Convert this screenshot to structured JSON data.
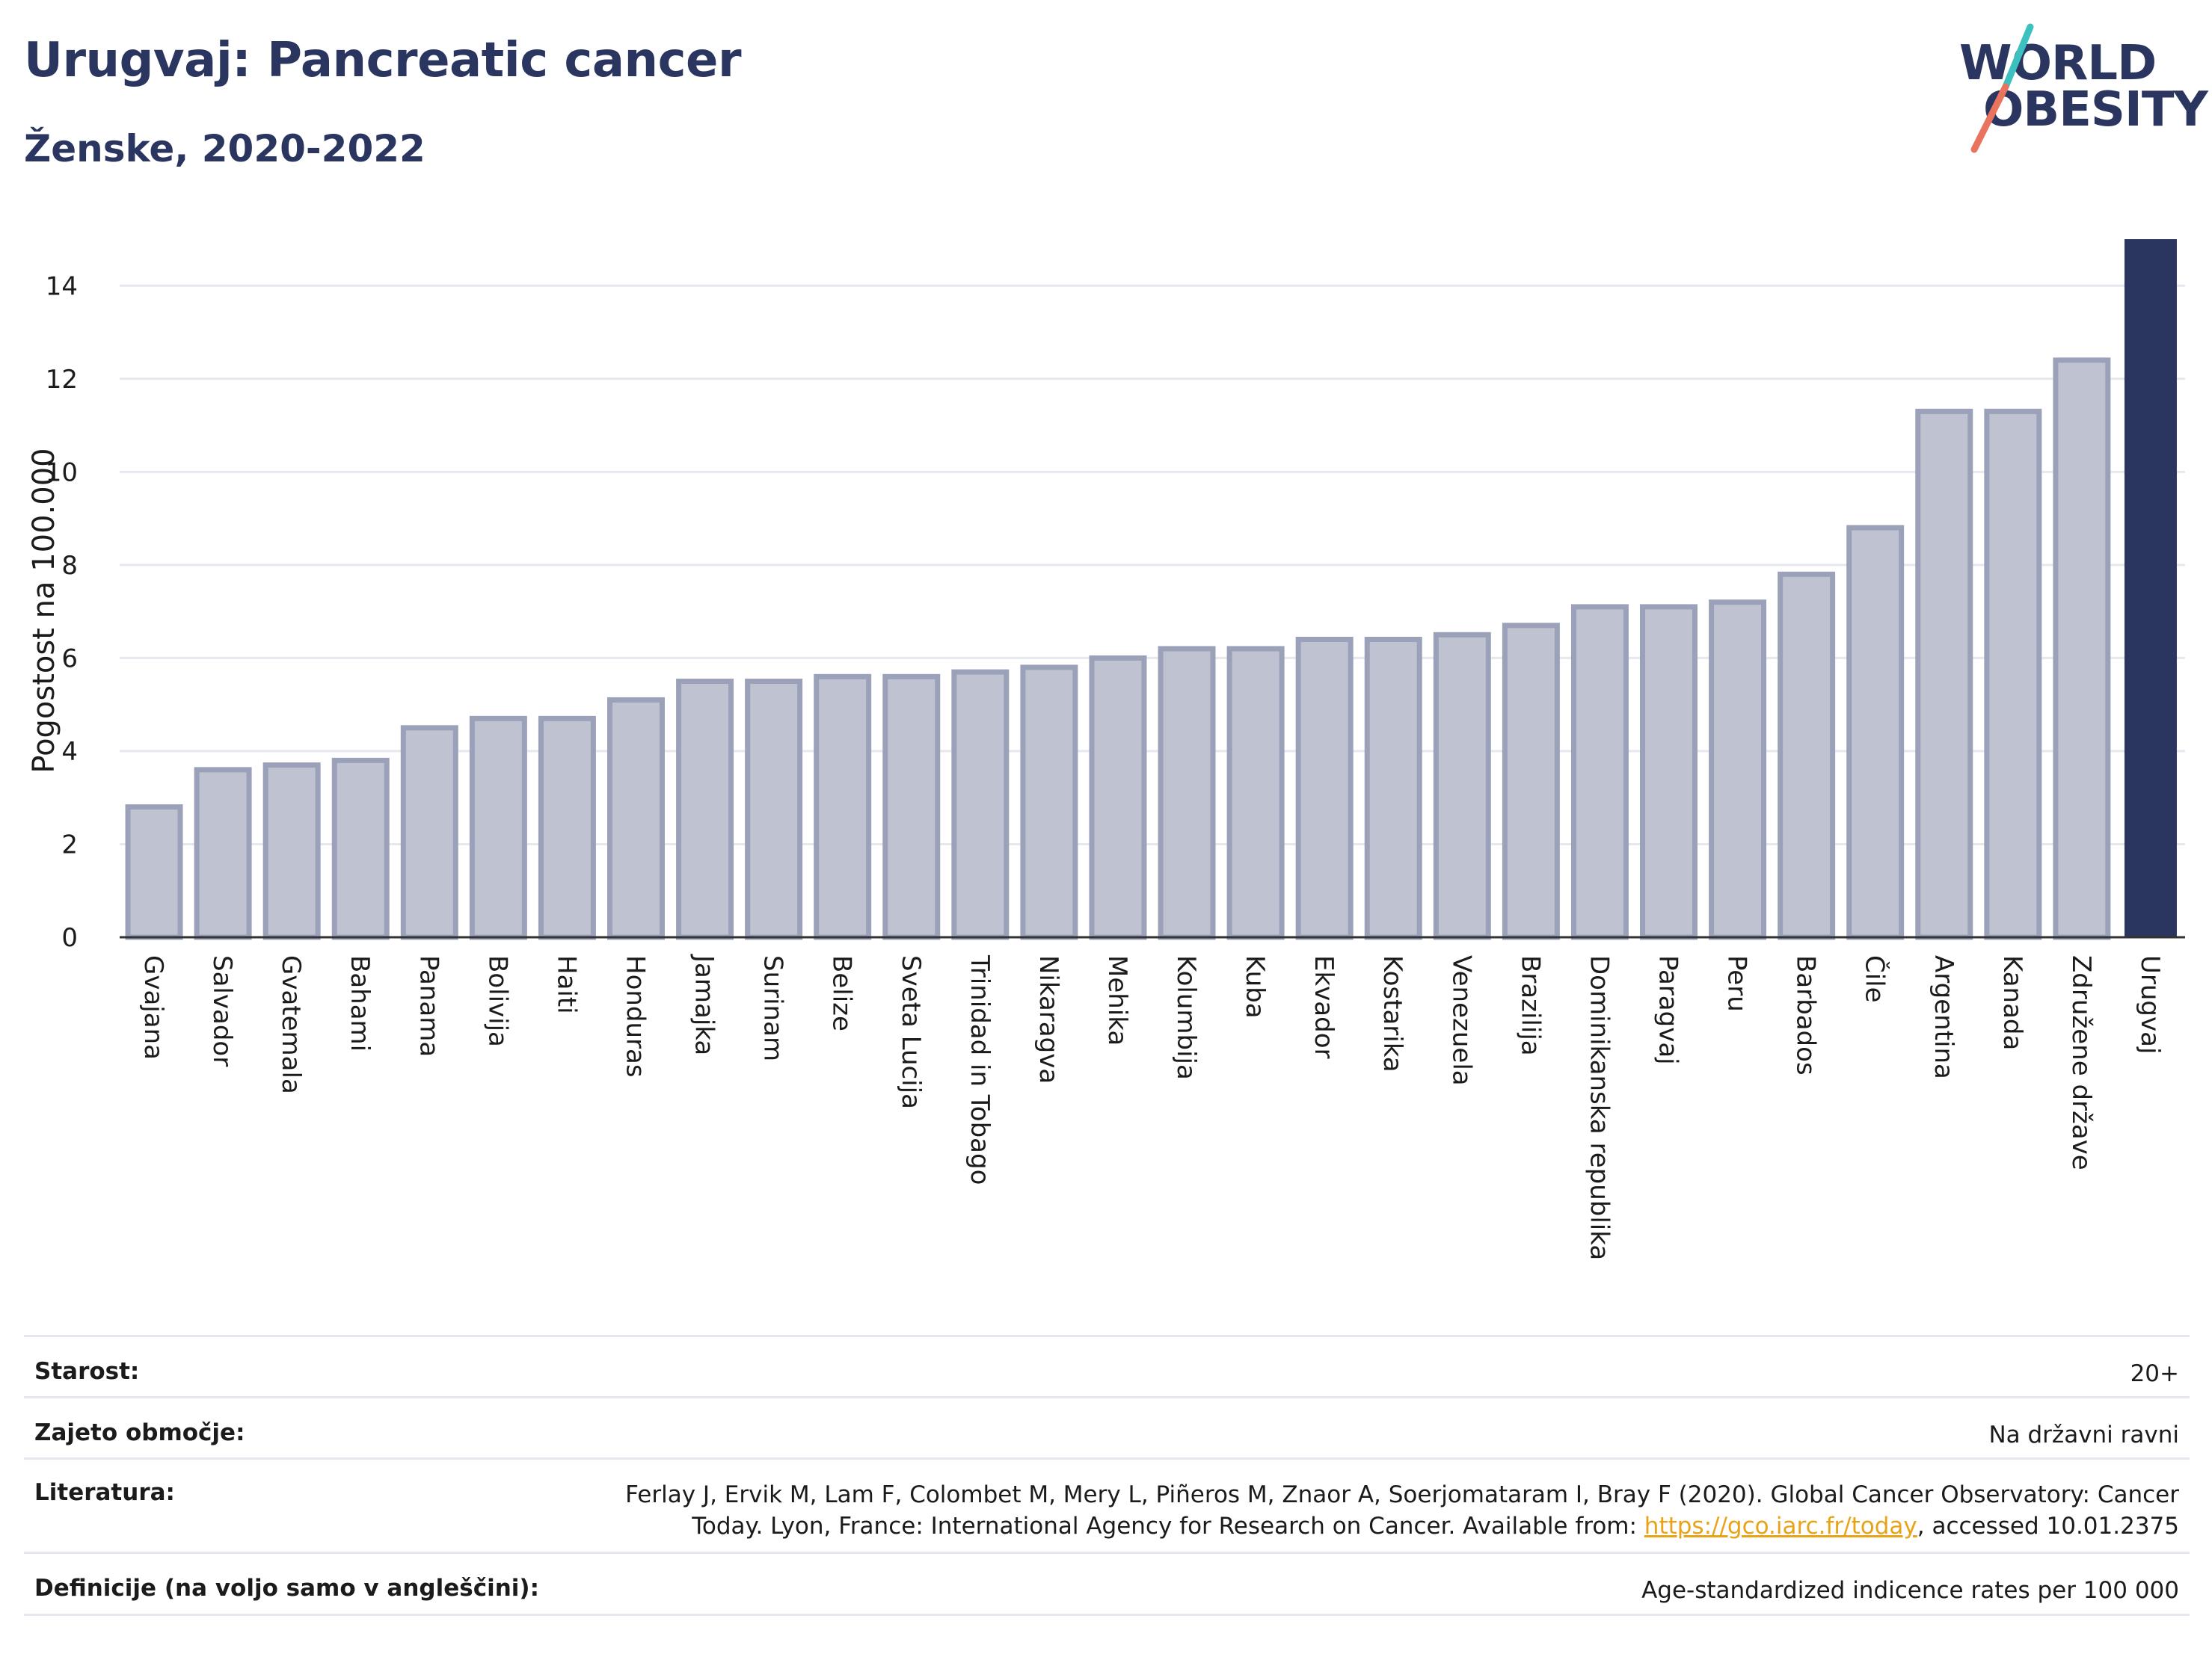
{
  "title": "Urugvaj: Pancreatic cancer",
  "subtitle": "Ženske, 2020-2022",
  "logo": {
    "line1": "WORLD",
    "line2": "OBESITY"
  },
  "colors": {
    "bar_fill": "#bfc2d0",
    "bar_stroke": "#9aa1b9",
    "highlight": "#2a3660",
    "grid": "#e6e8f0",
    "axis": "#333333",
    "logo_teal": "#3cc0c0",
    "logo_coral": "#e8735f",
    "link": "#e8a317"
  },
  "chart_data": {
    "type": "bar",
    "ylabel": "Pogostost na 100.000",
    "ylim": [
      0,
      15
    ],
    "yticks": [
      0,
      2,
      4,
      6,
      8,
      10,
      12,
      14
    ],
    "grid": true,
    "highlight_category": "Urugvaj",
    "categories": [
      "Gvajana",
      "Salvador",
      "Gvatemala",
      "Bahami",
      "Panama",
      "Bolivija",
      "Haiti",
      "Honduras",
      "Jamajka",
      "Surinam",
      "Belize",
      "Sveta Lucija",
      "Trinidad in Tobago",
      "Nikaragva",
      "Mehika",
      "Kolumbija",
      "Kuba",
      "Ekvador",
      "Kostarika",
      "Venezuela",
      "Brazilija",
      "Dominikanska republika",
      "Paragvaj",
      "Peru",
      "Barbados",
      "Čile",
      "Argentina",
      "Kanada",
      "Združene države",
      "Urugvaj"
    ],
    "values": [
      2.8,
      3.6,
      3.7,
      3.8,
      4.5,
      4.7,
      4.7,
      5.1,
      5.5,
      5.5,
      5.6,
      5.6,
      5.7,
      5.8,
      6.0,
      6.2,
      6.2,
      6.4,
      6.4,
      6.5,
      6.7,
      7.1,
      7.1,
      7.2,
      7.8,
      8.8,
      11.3,
      11.3,
      12.4,
      15.0
    ]
  },
  "meta": {
    "age": {
      "label": "Starost:",
      "value": "20+"
    },
    "coverage": {
      "label": "Zajeto območje:",
      "value": "Na državni ravni"
    },
    "literature": {
      "label": "Literatura:",
      "line1": "Ferlay J, Ervik M, Lam F, Colombet M, Mery L, Piñeros M, Znaor A, Soerjomataram I, Bray F (2020). Global Cancer Observatory: Cancer",
      "line2_pre": "Today. Lyon, France: International Agency for Research on Cancer. Available from: ",
      "link": "https://gco.iarc.fr/today",
      "line2_post": ", accessed 10.01.2375"
    },
    "definitions": {
      "label": "Definicije (na voljo samo v angleščini):",
      "value": "Age-standardized indicence rates per 100 000"
    }
  }
}
